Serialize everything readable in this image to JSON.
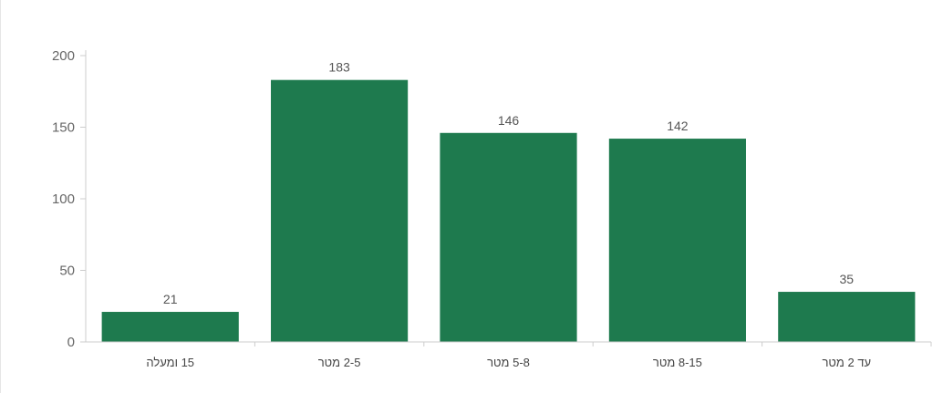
{
  "chart_data": {
    "type": "bar",
    "categories": [
      "15 ומעלה",
      "2-5 מטר",
      "5-8 מטר",
      "8-15 מטר",
      "עד 2 מטר"
    ],
    "values": [
      21,
      183,
      146,
      142,
      35
    ],
    "title": "",
    "xlabel": "",
    "ylabel": "",
    "ylim": [
      0,
      200
    ],
    "yticks": [
      0,
      50,
      100,
      150,
      200
    ],
    "grid": false,
    "legend": "none",
    "bar_color": "#1e7a4e",
    "show_data_labels": true
  }
}
